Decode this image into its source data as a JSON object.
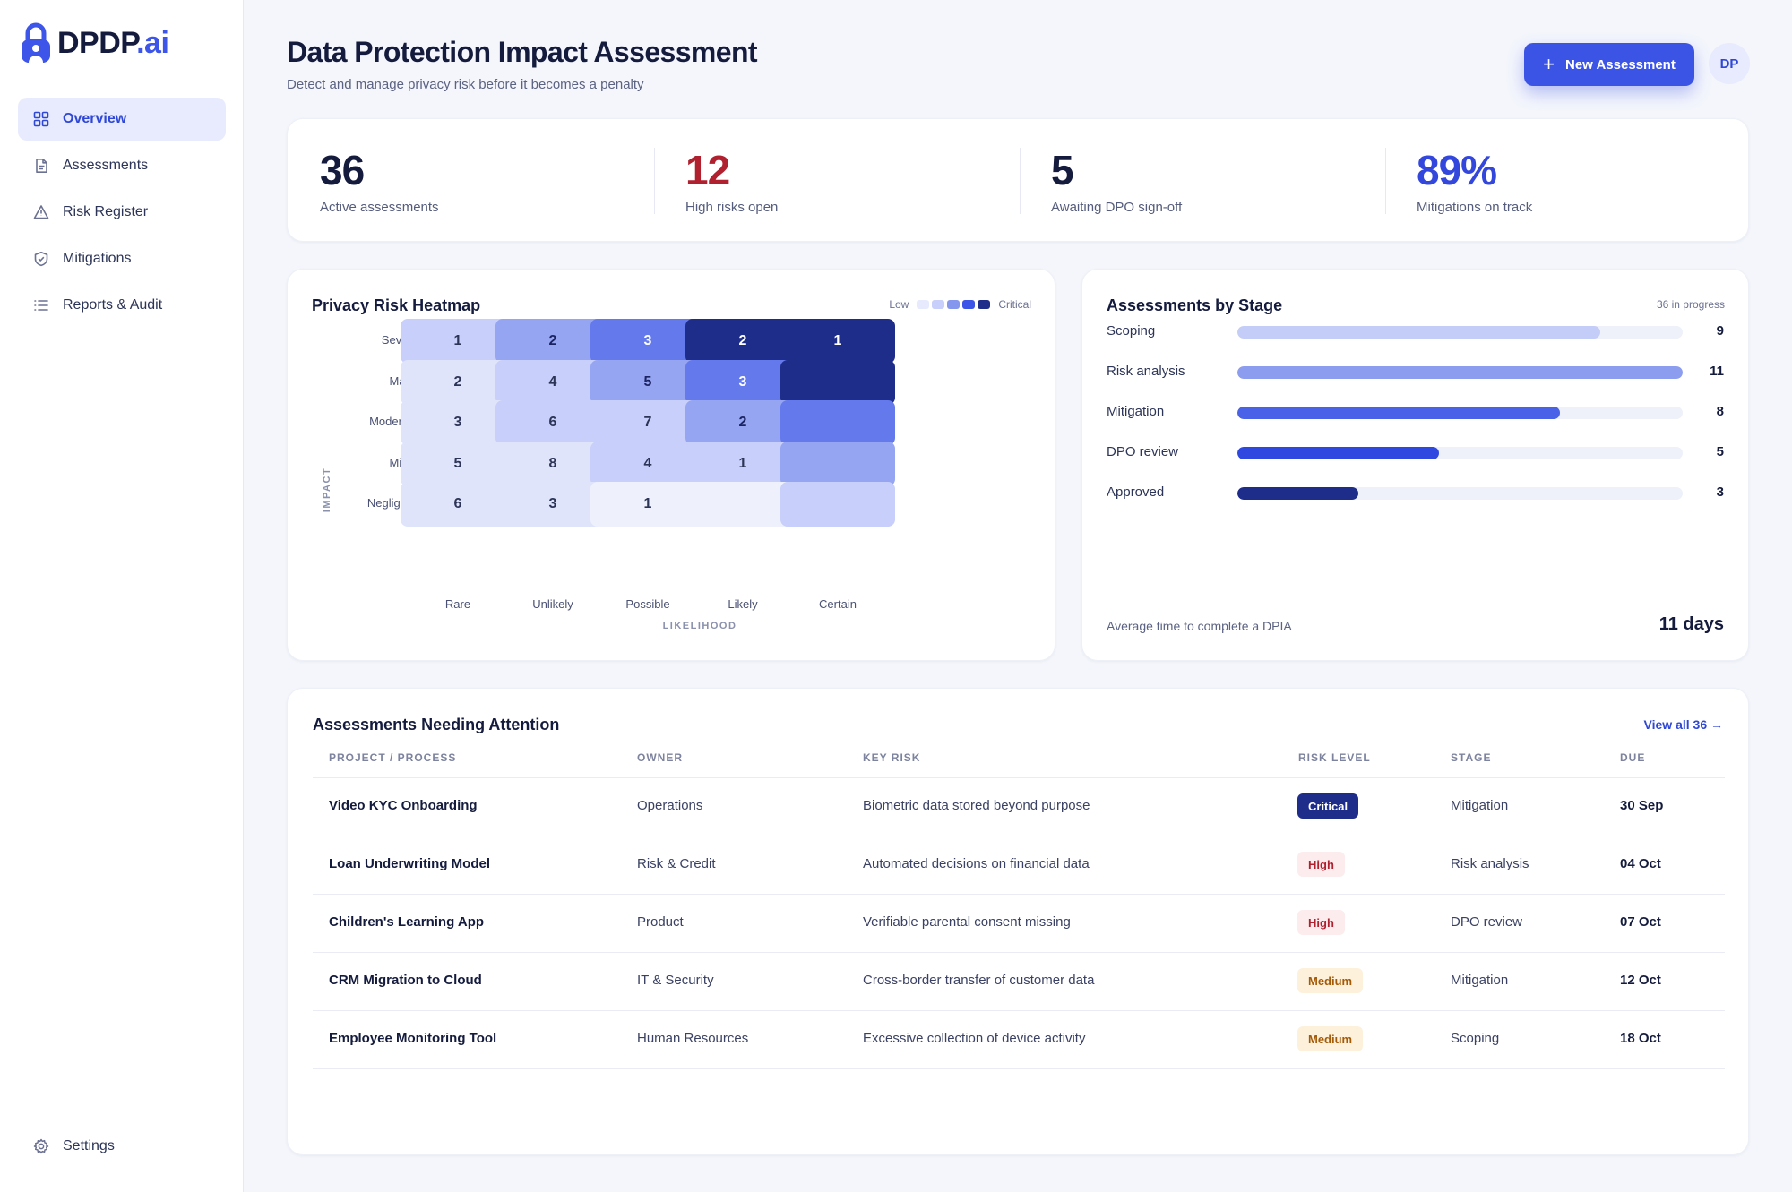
{
  "brand": {
    "name": "DPDP",
    "suffix": ".ai",
    "accent": "#3d55e8"
  },
  "sidebar": {
    "items": [
      {
        "label": "Overview",
        "icon": "grid-icon",
        "active": true
      },
      {
        "label": "Assessments",
        "icon": "document-icon",
        "active": false
      },
      {
        "label": "Risk Register",
        "icon": "warning-icon",
        "active": false
      },
      {
        "label": "Mitigations",
        "icon": "shield-icon",
        "active": false
      },
      {
        "label": "Reports & Audit",
        "icon": "list-icon",
        "active": false
      }
    ],
    "settings": {
      "label": "Settings",
      "icon": "gear-icon"
    }
  },
  "header": {
    "title": "Data Protection Impact Assessment",
    "subtitle": "Detect and manage privacy risk before it becomes a penalty",
    "new_button": "New Assessment",
    "avatar": "DP"
  },
  "stats": [
    {
      "value": "36",
      "label": "Active assessments",
      "tone": "default"
    },
    {
      "value": "12",
      "label": "High risks open",
      "tone": "red"
    },
    {
      "value": "5",
      "label": "Awaiting DPO sign-off",
      "tone": "default"
    },
    {
      "value": "89%",
      "label": "Mitigations on track",
      "tone": "blue"
    }
  ],
  "heatmap": {
    "title": "Privacy Risk Heatmap",
    "legend_low": "Low",
    "legend_high": "Critical",
    "y_axis": "IMPACT",
    "x_axis": "LIKELIHOOD",
    "rows": [
      "Severe",
      "Major",
      "Moderate",
      "Minor",
      "Negligible"
    ],
    "cols": [
      "Rare",
      "Unlikely",
      "Possible",
      "Likely",
      "Certain"
    ],
    "values": [
      [
        "1",
        "2",
        "3",
        "2",
        "1"
      ],
      [
        "2",
        "4",
        "5",
        "3",
        ""
      ],
      [
        "3",
        "6",
        "7",
        "2",
        ""
      ],
      [
        "5",
        "8",
        "4",
        "1",
        ""
      ],
      [
        "6",
        "3",
        "1",
        "",
        ""
      ]
    ],
    "levels": [
      [
        2,
        3,
        4,
        6,
        6
      ],
      [
        1,
        2,
        3,
        4,
        6
      ],
      [
        1,
        2,
        2,
        3,
        4
      ],
      [
        1,
        1,
        2,
        2,
        3
      ],
      [
        1,
        1,
        0,
        0,
        2
      ]
    ],
    "palette": [
      "#eef1fb",
      "#dfe4fb",
      "#c7cffa",
      "#95a5f2",
      "#6479ec",
      "#3d55e6",
      "#1f2d8a"
    ]
  },
  "stages": {
    "title": "Assessments by Stage",
    "meta": "36 in progress",
    "max": 11,
    "items": [
      {
        "label": "Scoping",
        "value": 9,
        "display": "9",
        "color": "#c4cdf7"
      },
      {
        "label": "Risk analysis",
        "value": 11,
        "display": "11",
        "color": "#8c9df0"
      },
      {
        "label": "Mitigation",
        "value": 8,
        "display": "8",
        "color": "#4a62e8"
      },
      {
        "label": "DPO review",
        "value": 5,
        "display": "5",
        "color": "#2f48e0"
      },
      {
        "label": "Approved",
        "value": 3,
        "display": "3",
        "color": "#1f2d8a"
      }
    ],
    "avg_label": "Average time to complete a DPIA",
    "avg_value": "11 days"
  },
  "attention": {
    "title": "Assessments Needing Attention",
    "view_all": "View all 36 →",
    "headers": [
      "PROJECT / PROCESS",
      "OWNER",
      "KEY RISK",
      "RISK LEVEL",
      "STAGE",
      "DUE"
    ],
    "rows": [
      {
        "project": "Video KYC Onboarding",
        "owner": "Operations",
        "risk": "Biometric data stored beyond purpose",
        "level": "Critical",
        "level_type": "critical",
        "stage": "Mitigation",
        "due": "30 Sep"
      },
      {
        "project": "Loan Underwriting Model",
        "owner": "Risk & Credit",
        "risk": "Automated decisions on financial data",
        "level": "High",
        "level_type": "high",
        "stage": "Risk analysis",
        "due": "04 Oct"
      },
      {
        "project": "Children's Learning App",
        "owner": "Product",
        "risk": "Verifiable parental consent missing",
        "level": "High",
        "level_type": "high",
        "stage": "DPO review",
        "due": "07 Oct"
      },
      {
        "project": "CRM Migration to Cloud",
        "owner": "IT & Security",
        "risk": "Cross-border transfer of customer data",
        "level": "Medium",
        "level_type": "medium",
        "stage": "Mitigation",
        "due": "12 Oct"
      },
      {
        "project": "Employee Monitoring Tool",
        "owner": "Human Resources",
        "risk": "Excessive collection of device activity",
        "level": "Medium",
        "level_type": "medium",
        "stage": "Scoping",
        "due": "18 Oct"
      }
    ]
  }
}
